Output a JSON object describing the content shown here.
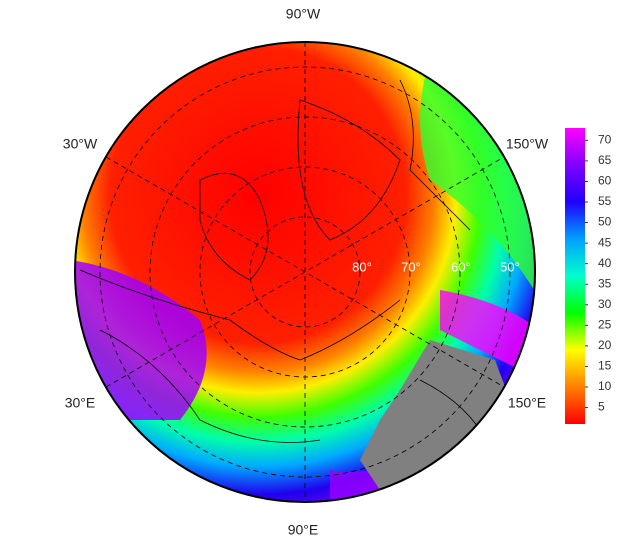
{
  "map": {
    "lon_labels": [
      "90°W",
      "30°W",
      "150°W",
      "30°E",
      "150°E",
      "90°E"
    ],
    "lat_labels": [
      "80°",
      "70°",
      "60°",
      "50°"
    ]
  },
  "colorbar": {
    "range": [
      1,
      73
    ],
    "ticks": [
      5,
      10,
      15,
      20,
      25,
      30,
      35,
      40,
      45,
      50,
      55,
      60,
      65,
      70
    ],
    "colors": [
      "#ff0000",
      "#ff7f00",
      "#ffff00",
      "#00ff00",
      "#00ffcc",
      "#00a0ff",
      "#2000ff",
      "#8000ff",
      "#ff00ff"
    ]
  }
}
